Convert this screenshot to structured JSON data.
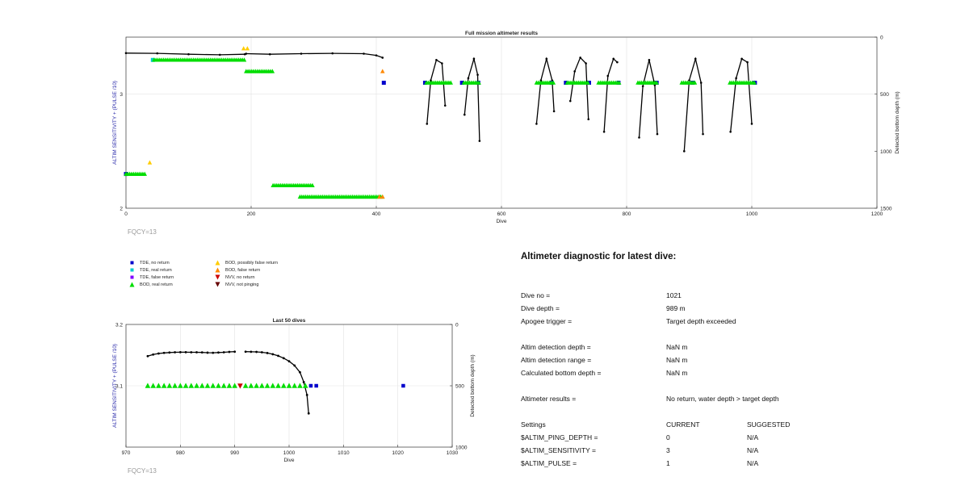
{
  "chart_data": [
    {
      "type": "scatter",
      "title": "Full mission altimeter results",
      "xlabel": "Dive",
      "ylabel": "ALTIM SENSITIVITY + (PULSE /10)",
      "y2label": "Detected bottom depth (m)",
      "xlim": [
        0,
        1200
      ],
      "ylim": [
        2,
        3.5
      ],
      "y2lim": [
        1500,
        0
      ],
      "xticks": [
        "0",
        "200",
        "400",
        "600",
        "800",
        "1000",
        "1200"
      ],
      "yticks": [
        "2",
        "3"
      ],
      "y2ticks": [
        "0",
        "500",
        "1000",
        "1500"
      ],
      "grid": true,
      "note": "FQCY=13",
      "depth_segments": [
        [
          [
            0,
            140
          ],
          [
            50,
            142
          ],
          [
            100,
            150
          ],
          [
            150,
            155
          ],
          [
            190,
            150
          ]
        ],
        [
          [
            192,
            145
          ],
          [
            230,
            150
          ],
          [
            280,
            145
          ],
          [
            330,
            142
          ],
          [
            380,
            145
          ],
          [
            400,
            160
          ],
          [
            410,
            180
          ]
        ],
        [
          [
            481,
            760
          ],
          [
            487,
            380
          ],
          [
            496,
            200
          ],
          [
            505,
            230
          ],
          [
            510,
            600
          ]
        ],
        [
          [
            541,
            680
          ],
          [
            547,
            360
          ],
          [
            556,
            190
          ],
          [
            562,
            330
          ],
          [
            565,
            910
          ]
        ],
        [
          [
            656,
            760
          ],
          [
            663,
            380
          ],
          [
            672,
            190
          ],
          [
            681,
            380
          ],
          [
            684,
            650
          ]
        ],
        [
          [
            710,
            560
          ],
          [
            717,
            300
          ],
          [
            726,
            180
          ],
          [
            735,
            230
          ],
          [
            739,
            720
          ]
        ],
        [
          [
            764,
            830
          ],
          [
            770,
            340
          ],
          [
            779,
            190
          ],
          [
            785,
            220
          ]
        ],
        [
          [
            820,
            880
          ],
          [
            826,
            430
          ],
          [
            836,
            200
          ],
          [
            845,
            420
          ],
          [
            849,
            850
          ]
        ],
        [
          [
            892,
            1000
          ],
          [
            900,
            380
          ],
          [
            910,
            190
          ],
          [
            919,
            400
          ],
          [
            922,
            850
          ]
        ],
        [
          [
            966,
            830
          ],
          [
            975,
            360
          ],
          [
            984,
            190
          ],
          [
            993,
            220
          ],
          [
            1000,
            760
          ]
        ]
      ],
      "series": [
        {
          "name": "TDE, no return",
          "color": "#0000cc",
          "marker": "square",
          "points": [
            [
              0,
              2.3
            ],
            [
              412,
              3.1
            ],
            [
              478,
              3.1
            ],
            [
              537,
              3.1
            ],
            [
              563,
              3.1
            ],
            [
              680,
              3.1
            ],
            [
              703,
              3.1
            ],
            [
              740,
              3.1
            ],
            [
              787,
              3.1
            ],
            [
              848,
              3.1
            ],
            [
              905,
              3.1
            ],
            [
              1005,
              3.1
            ]
          ]
        },
        {
          "name": "TDE, real return",
          "color": "#00cccc",
          "marker": "square",
          "points": [
            [
              43,
              3.3
            ]
          ]
        },
        {
          "name": "TDE, false return",
          "color": "#7f00ff",
          "marker": "square",
          "points": []
        },
        {
          "name": "BOD, real return",
          "color": "#00dd00",
          "marker": "triangle-up",
          "ranges": [
            [
              0,
              30,
              2.3
            ],
            [
              45,
              190,
              3.3
            ],
            [
              192,
              235,
              3.2
            ],
            [
              235,
              300,
              2.2
            ],
            [
              278,
              410,
              2.1
            ],
            [
              480,
              520,
              3.1
            ],
            [
              540,
              565,
              3.1
            ],
            [
              656,
              685,
              3.1
            ],
            [
              705,
              740,
              3.1
            ],
            [
              755,
              788,
              3.1
            ],
            [
              818,
              850,
              3.1
            ],
            [
              888,
              910,
              3.1
            ],
            [
              965,
              1005,
              3.1
            ]
          ]
        },
        {
          "name": "BOD, possibly false return",
          "color": "#ffcc00",
          "marker": "triangle-up",
          "points": [
            [
              38,
              2.4
            ],
            [
              188,
              3.4
            ],
            [
              194,
              3.4
            ]
          ]
        },
        {
          "name": "BOD, false return",
          "color": "#ff8800",
          "marker": "triangle-up",
          "points": [
            [
              410,
              3.2
            ],
            [
              405,
              2.1
            ],
            [
              410,
              2.1
            ]
          ]
        },
        {
          "name": "NVV, no return",
          "color": "#cc0000",
          "marker": "triangle-down",
          "points": []
        },
        {
          "name": "NVV, not pinging",
          "color": "#660000",
          "marker": "triangle-down",
          "points": []
        }
      ]
    },
    {
      "type": "scatter",
      "title": "Last 50 dives",
      "xlabel": "Dive",
      "ylabel": "ALTIM SENSITIVITY + (PULSE /10)",
      "y2label": "Detected bottom depth (m)",
      "xlim": [
        970,
        1030
      ],
      "ylim": [
        3.0,
        3.2
      ],
      "y2lim": [
        1000,
        0
      ],
      "xticks": [
        "970",
        "980",
        "990",
        "1000",
        "1010",
        "1020",
        "1030"
      ],
      "yticks": [
        "3.1",
        "3.2"
      ],
      "y2ticks": [
        "0",
        "500",
        "1000"
      ],
      "grid": true,
      "note": "FQCY=13",
      "depth_segments": [
        [
          [
            974,
            258
          ],
          [
            975,
            245
          ],
          [
            976,
            237
          ],
          [
            977,
            232
          ],
          [
            978,
            229
          ],
          [
            979,
            227
          ],
          [
            980,
            226
          ],
          [
            981,
            226
          ],
          [
            982,
            227
          ],
          [
            983,
            227
          ],
          [
            984,
            228
          ],
          [
            985,
            230
          ],
          [
            986,
            231
          ],
          [
            987,
            229
          ],
          [
            988,
            227
          ],
          [
            989,
            224
          ],
          [
            990,
            222
          ]
        ],
        [
          [
            992,
            222
          ],
          [
            993,
            223
          ],
          [
            994,
            224
          ],
          [
            995,
            227
          ],
          [
            996,
            233
          ],
          [
            997,
            243
          ],
          [
            998,
            256
          ],
          [
            999,
            275
          ],
          [
            1000,
            300
          ],
          [
            1001,
            335
          ],
          [
            1002,
            390
          ],
          [
            1002.7,
            470
          ],
          [
            1003.3,
            575
          ],
          [
            1003.6,
            725
          ]
        ]
      ],
      "bod_real_x": [
        974,
        975,
        976,
        977,
        978,
        979,
        980,
        981,
        982,
        983,
        984,
        985,
        986,
        987,
        988,
        989,
        990,
        992,
        993,
        994,
        995,
        996,
        997,
        998,
        999,
        1000,
        1001,
        1002,
        1003
      ],
      "bod_real_y": 3.1,
      "nvv_no_return": [
        [
          991,
          3.1
        ]
      ],
      "tde_no_return": [
        [
          1004,
          3.1
        ],
        [
          1005,
          3.1
        ],
        [
          1021,
          3.1
        ]
      ]
    }
  ],
  "legend": {
    "col1": [
      {
        "label": "TDE, no return",
        "color": "#0000cc",
        "marker": "square"
      },
      {
        "label": "TDE, real return",
        "color": "#00cccc",
        "marker": "square"
      },
      {
        "label": "TDE, false return",
        "color": "#7f00ff",
        "marker": "square"
      },
      {
        "label": "BOD, real return",
        "color": "#00dd00",
        "marker": "triangle-up"
      }
    ],
    "col2": [
      {
        "label": "BOD, possibly false return",
        "color": "#ffcc00",
        "marker": "triangle-up"
      },
      {
        "label": "BOD, false return",
        "color": "#ff8800",
        "marker": "triangle-up"
      },
      {
        "label": "NVV, no return",
        "color": "#cc0000",
        "marker": "triangle-down"
      },
      {
        "label": "NVV, not pinging",
        "color": "#660000",
        "marker": "triangle-down"
      }
    ]
  },
  "diagnostic": {
    "title": "Altimeter diagnostic for latest dive:",
    "dive_no_label": "Dive no =",
    "dive_no": "1021",
    "dive_depth_label": "Dive depth =",
    "dive_depth": "989 m",
    "apogee_label": "Apogee trigger =",
    "apogee": "Target depth exceeded",
    "altim_det_depth_label": "Altim detection depth =",
    "altim_det_depth": "NaN m",
    "altim_det_range_label": "Altim detection range =",
    "altim_det_range": "NaN m",
    "calc_bottom_label": "Calculated bottom depth =",
    "calc_bottom": "NaN m",
    "results_label": "Altimeter results =",
    "results": "No return, water depth > target depth",
    "settings_label": "Settings",
    "current_label": "CURRENT",
    "suggested_label": "SUGGESTED",
    "ping_depth_label": "$ALTIM_PING_DEPTH =",
    "ping_depth_current": "0",
    "ping_depth_suggested": "N/A",
    "sensitivity_label": "$ALTIM_SENSITIVITY =",
    "sensitivity_current": "3",
    "sensitivity_suggested": "N/A",
    "pulse_label": "$ALTIM_PULSE =",
    "pulse_current": "1",
    "pulse_suggested": "N/A"
  }
}
